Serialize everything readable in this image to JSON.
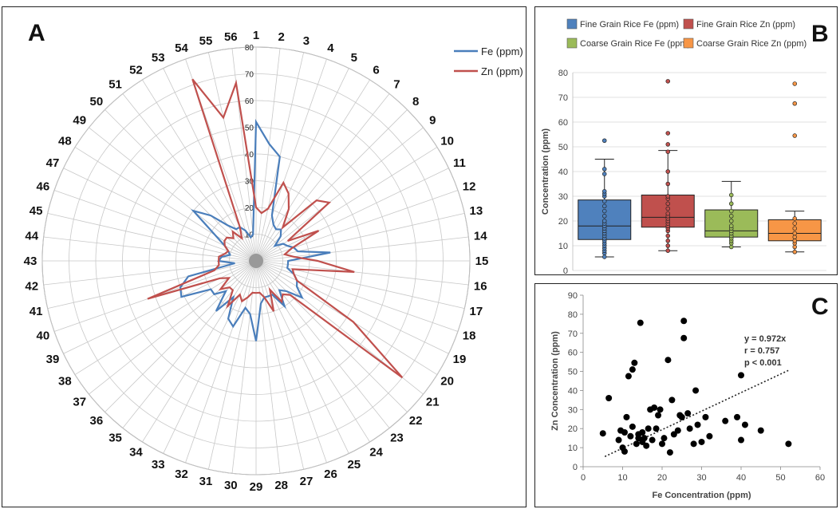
{
  "panels": {
    "a": "A",
    "b": "B",
    "c": "C"
  },
  "chart_data": [
    {
      "type": "radar",
      "panel": "A",
      "spokes": [
        "1",
        "2",
        "3",
        "4",
        "5",
        "6",
        "7",
        "8",
        "9",
        "10",
        "11",
        "12",
        "13",
        "14",
        "15",
        "16",
        "17",
        "18",
        "19",
        "20",
        "21",
        "22",
        "23",
        "24",
        "25",
        "26",
        "27",
        "28",
        "29",
        "30",
        "31",
        "32",
        "33",
        "34",
        "35",
        "36",
        "37",
        "38",
        "39",
        "40",
        "41",
        "42",
        "43",
        "44",
        "45",
        "46",
        "47",
        "48",
        "49",
        "50",
        "51",
        "52",
        "53",
        "54",
        "55",
        "56"
      ],
      "rings": [
        0,
        10,
        20,
        30,
        40,
        50,
        60,
        70,
        80
      ],
      "rmax": 80,
      "series": [
        {
          "name": "Fe (ppm)",
          "color": "#4a7ebb",
          "values": [
            52,
            44,
            40,
            18,
            15,
            14,
            15,
            13,
            9,
            12,
            13,
            15,
            16,
            28,
            12,
            12,
            12,
            15,
            17,
            18,
            22,
            16,
            14,
            20,
            14,
            14,
            14,
            16,
            30,
            20,
            18,
            26,
            24,
            16,
            24,
            16,
            20,
            20,
            31,
            30,
            26,
            8,
            14,
            13,
            10,
            11,
            13,
            18,
            30,
            24,
            17,
            14,
            14,
            12,
            9,
            10
          ]
        },
        {
          "name": "Zn (ppm)",
          "color": "#c0504d",
          "values": [
            20,
            18,
            20,
            31,
            28,
            23,
            16,
            32,
            35,
            14,
            26,
            14,
            11,
            14,
            23,
            37,
            14,
            15,
            17,
            43,
            70,
            18,
            16,
            18,
            12,
            20,
            14,
            12,
            12,
            12,
            14,
            16,
            14,
            20,
            14,
            14,
            17,
            12,
            15,
            43,
            16,
            14,
            14,
            14,
            12,
            11,
            13,
            14,
            14,
            12,
            14,
            10,
            14,
            72,
            55,
            67
          ]
        }
      ]
    },
    {
      "type": "box",
      "panel": "B",
      "ylabel": "Concentration (ppm)",
      "ylim": [
        0,
        80
      ],
      "yticks": [
        0,
        10,
        20,
        30,
        40,
        50,
        60,
        70,
        80
      ],
      "groups": [
        {
          "name": "Fine Grain Rice Fe (ppm)",
          "color": "#4f81bd",
          "min": 5.5,
          "q1": 12.5,
          "median": 18,
          "q3": 28.5,
          "max": 45,
          "points": [
            5.5,
            7,
            8,
            9,
            10,
            11,
            12,
            13,
            14,
            15,
            16,
            17,
            18,
            19,
            20,
            22,
            24,
            26,
            28,
            30,
            31,
            32,
            39,
            41,
            52.5
          ]
        },
        {
          "name": "Fine Grain Rice Zn (ppm)",
          "color": "#c0504d",
          "min": 8,
          "q1": 17.5,
          "median": 21.5,
          "q3": 30.5,
          "max": 48.5,
          "points": [
            8,
            10,
            12,
            14,
            16,
            17,
            18,
            19,
            20,
            21,
            22,
            23,
            25,
            27,
            29,
            30,
            35,
            40,
            48,
            51,
            55.5,
            76.5
          ]
        },
        {
          "name": "Coarse Grain Rice Fe (ppm)",
          "color": "#9bbb59",
          "min": 9.5,
          "q1": 13.5,
          "median": 16,
          "q3": 24.5,
          "max": 36,
          "points": [
            9.5,
            11,
            12,
            13,
            14,
            15,
            16,
            17,
            18,
            20,
            22,
            24,
            27,
            30.5
          ]
        },
        {
          "name": "Coarse Grain Rice Zn (ppm)",
          "color": "#f79646",
          "min": 7.5,
          "q1": 12,
          "median": 15,
          "q3": 20.5,
          "max": 24,
          "points": [
            7.5,
            9.5,
            11,
            12,
            13.5,
            15,
            17,
            19,
            21,
            54.5,
            67.5,
            75.5
          ]
        }
      ]
    },
    {
      "type": "scatter",
      "panel": "C",
      "xlabel": "Fe Concentration (ppm)",
      "ylabel": "Zn Concentration (ppm)",
      "xlim": [
        0,
        60
      ],
      "ylim": [
        0,
        90
      ],
      "xticks": [
        0,
        10,
        20,
        30,
        40,
        50,
        60
      ],
      "yticks": [
        0,
        10,
        20,
        30,
        40,
        50,
        60,
        70,
        80,
        90
      ],
      "annotation": [
        "y = 0.972x",
        "r = 0.757",
        "p < 0.001"
      ],
      "trend": {
        "slope": 0.972,
        "x0": 5.5,
        "x1": 52
      },
      "points": [
        [
          5,
          17.5
        ],
        [
          6.5,
          36
        ],
        [
          9,
          14
        ],
        [
          9.5,
          19
        ],
        [
          10,
          10
        ],
        [
          10.5,
          8
        ],
        [
          10.5,
          18
        ],
        [
          11,
          26
        ],
        [
          11.5,
          47.5
        ],
        [
          12,
          16
        ],
        [
          12.5,
          21
        ],
        [
          12.5,
          51
        ],
        [
          13,
          54.5
        ],
        [
          13.5,
          12
        ],
        [
          14,
          15
        ],
        [
          14,
          17
        ],
        [
          14.5,
          75.5
        ],
        [
          15,
          13
        ],
        [
          15,
          18
        ],
        [
          15.5,
          15
        ],
        [
          16,
          11
        ],
        [
          16.5,
          20
        ],
        [
          17,
          30
        ],
        [
          17.5,
          14
        ],
        [
          18,
          31
        ],
        [
          18.5,
          20
        ],
        [
          19,
          27
        ],
        [
          19.5,
          30
        ],
        [
          20,
          12
        ],
        [
          20.5,
          15
        ],
        [
          21.5,
          56
        ],
        [
          22,
          7.5
        ],
        [
          22.5,
          35
        ],
        [
          23,
          17
        ],
        [
          24,
          19
        ],
        [
          24.5,
          27
        ],
        [
          25,
          26
        ],
        [
          25.5,
          76.5
        ],
        [
          25.5,
          67.5
        ],
        [
          26.5,
          28
        ],
        [
          27,
          20
        ],
        [
          28,
          12
        ],
        [
          28.5,
          40
        ],
        [
          29,
          22
        ],
        [
          30,
          13
        ],
        [
          31,
          26
        ],
        [
          32,
          16
        ],
        [
          36,
          24
        ],
        [
          39,
          26
        ],
        [
          40,
          14
        ],
        [
          40,
          48
        ],
        [
          41,
          22
        ],
        [
          45,
          19
        ],
        [
          52,
          12
        ]
      ]
    }
  ]
}
